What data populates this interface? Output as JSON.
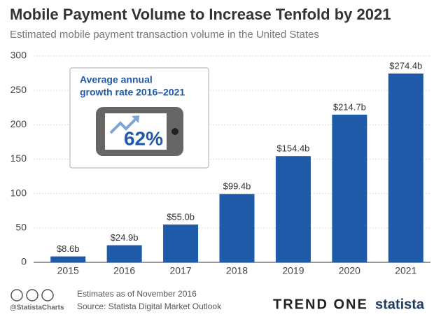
{
  "chart_data": {
    "type": "bar",
    "title": "Mobile Payment Volume to Increase Tenfold by 2021",
    "subtitle": "Estimated mobile payment transaction volume in the United States",
    "categories": [
      "2015",
      "2016",
      "2017",
      "2018",
      "2019",
      "2020",
      "2021"
    ],
    "values": [
      8.6,
      24.9,
      55.0,
      99.4,
      154.4,
      214.7,
      274.4
    ],
    "value_labels": [
      "$8.6b",
      "$24.9b",
      "$55.0b",
      "$99.4b",
      "$154.4b",
      "$214.7b",
      "$274.4b"
    ],
    "color": "#1f5aa8",
    "ylim": [
      0,
      300
    ],
    "yticks": [
      0,
      50,
      100,
      150,
      200,
      250,
      300
    ],
    "grid": true,
    "annotations": {
      "callout_lines": [
        "Average annual",
        "growth rate 2016–2021"
      ],
      "callout_value": "62%"
    },
    "footer": {
      "note": "Estimates as of November 2016",
      "source": "Source: Statista Digital Market Outlook",
      "handle": "@StatistaCharts",
      "logo1": "TREND ONE",
      "logo2": "statista"
    }
  }
}
